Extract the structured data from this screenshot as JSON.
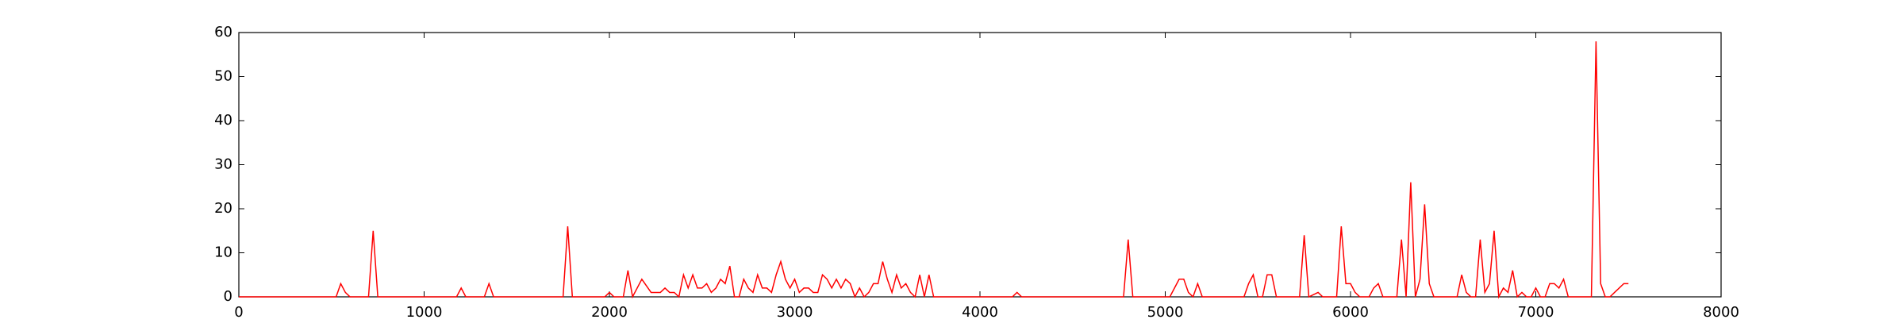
{
  "chart_data": {
    "type": "line",
    "x": [
      0,
      525,
      550,
      575,
      600,
      700,
      725,
      750,
      1175,
      1200,
      1225,
      1325,
      1350,
      1375,
      1750,
      1775,
      1800,
      1975,
      2000,
      2025,
      2075,
      2100,
      2125,
      2175,
      2225,
      2275,
      2300,
      2325,
      2350,
      2375,
      2400,
      2425,
      2450,
      2475,
      2500,
      2525,
      2550,
      2575,
      2600,
      2625,
      2650,
      2675,
      2700,
      2725,
      2750,
      2775,
      2800,
      2825,
      2850,
      2875,
      2900,
      2925,
      2950,
      2975,
      3000,
      3025,
      3050,
      3075,
      3100,
      3125,
      3150,
      3175,
      3200,
      3225,
      3250,
      3275,
      3300,
      3325,
      3350,
      3375,
      3400,
      3425,
      3450,
      3475,
      3500,
      3525,
      3550,
      3575,
      3600,
      3625,
      3650,
      3675,
      3700,
      3725,
      3750,
      4175,
      4200,
      4225,
      4775,
      4800,
      4825,
      5025,
      5050,
      5075,
      5100,
      5125,
      5150,
      5175,
      5200,
      5425,
      5450,
      5475,
      5500,
      5525,
      5550,
      5575,
      5600,
      5725,
      5750,
      5775,
      5825,
      5850,
      5925,
      5950,
      5975,
      6000,
      6025,
      6050,
      6100,
      6125,
      6150,
      6175,
      6250,
      6275,
      6300,
      6325,
      6350,
      6375,
      6400,
      6425,
      6450,
      6575,
      6600,
      6625,
      6650,
      6675,
      6700,
      6725,
      6750,
      6775,
      6800,
      6825,
      6850,
      6875,
      6900,
      6925,
      6950,
      6975,
      7000,
      7025,
      7050,
      7075,
      7100,
      7125,
      7150,
      7175,
      7300,
      7325,
      7350,
      7375,
      7400,
      7425,
      7450,
      7475,
      7500
    ],
    "series": [
      {
        "color": "#ff0000",
        "values": [
          0,
          0,
          3,
          1,
          0,
          0,
          15,
          0,
          0,
          2,
          0,
          0,
          3,
          0,
          0,
          16,
          0,
          0,
          1,
          0,
          0,
          6,
          0,
          4,
          1,
          1,
          2,
          1,
          1,
          0,
          5,
          2,
          5,
          2,
          2,
          3,
          1,
          2,
          4,
          3,
          7,
          0,
          0,
          4,
          2,
          1,
          5,
          2,
          2,
          1,
          5,
          8,
          4,
          2,
          4,
          1,
          2,
          2,
          1,
          1,
          5,
          4,
          2,
          4,
          2,
          4,
          3,
          0,
          2,
          0,
          1,
          3,
          3,
          8,
          4,
          1,
          5,
          2,
          3,
          1,
          0,
          5,
          0,
          5,
          0,
          0,
          1,
          0,
          0,
          13,
          0,
          0,
          2,
          4,
          4,
          1,
          0,
          3,
          0,
          0,
          3,
          5,
          0,
          0,
          5,
          5,
          0,
          0,
          14,
          0,
          1,
          0,
          0,
          16,
          3,
          3,
          1,
          0,
          0,
          2,
          3,
          0,
          0,
          13,
          0,
          26,
          0,
          4,
          21,
          3,
          0,
          0,
          5,
          1,
          0,
          0,
          13,
          1,
          3,
          15,
          0,
          2,
          1,
          6,
          0,
          1,
          0,
          0,
          2,
          0,
          0,
          3,
          3,
          2,
          4,
          0,
          0,
          58,
          3,
          0,
          0,
          1,
          2,
          3,
          3
        ]
      }
    ],
    "xlim": [
      0,
      8000
    ],
    "xticks": [
      0,
      1000,
      2000,
      3000,
      4000,
      5000,
      6000,
      7000,
      8000
    ],
    "ylim": [
      0,
      60
    ],
    "yticks": [
      0,
      10,
      20,
      30,
      40,
      50,
      60
    ]
  }
}
